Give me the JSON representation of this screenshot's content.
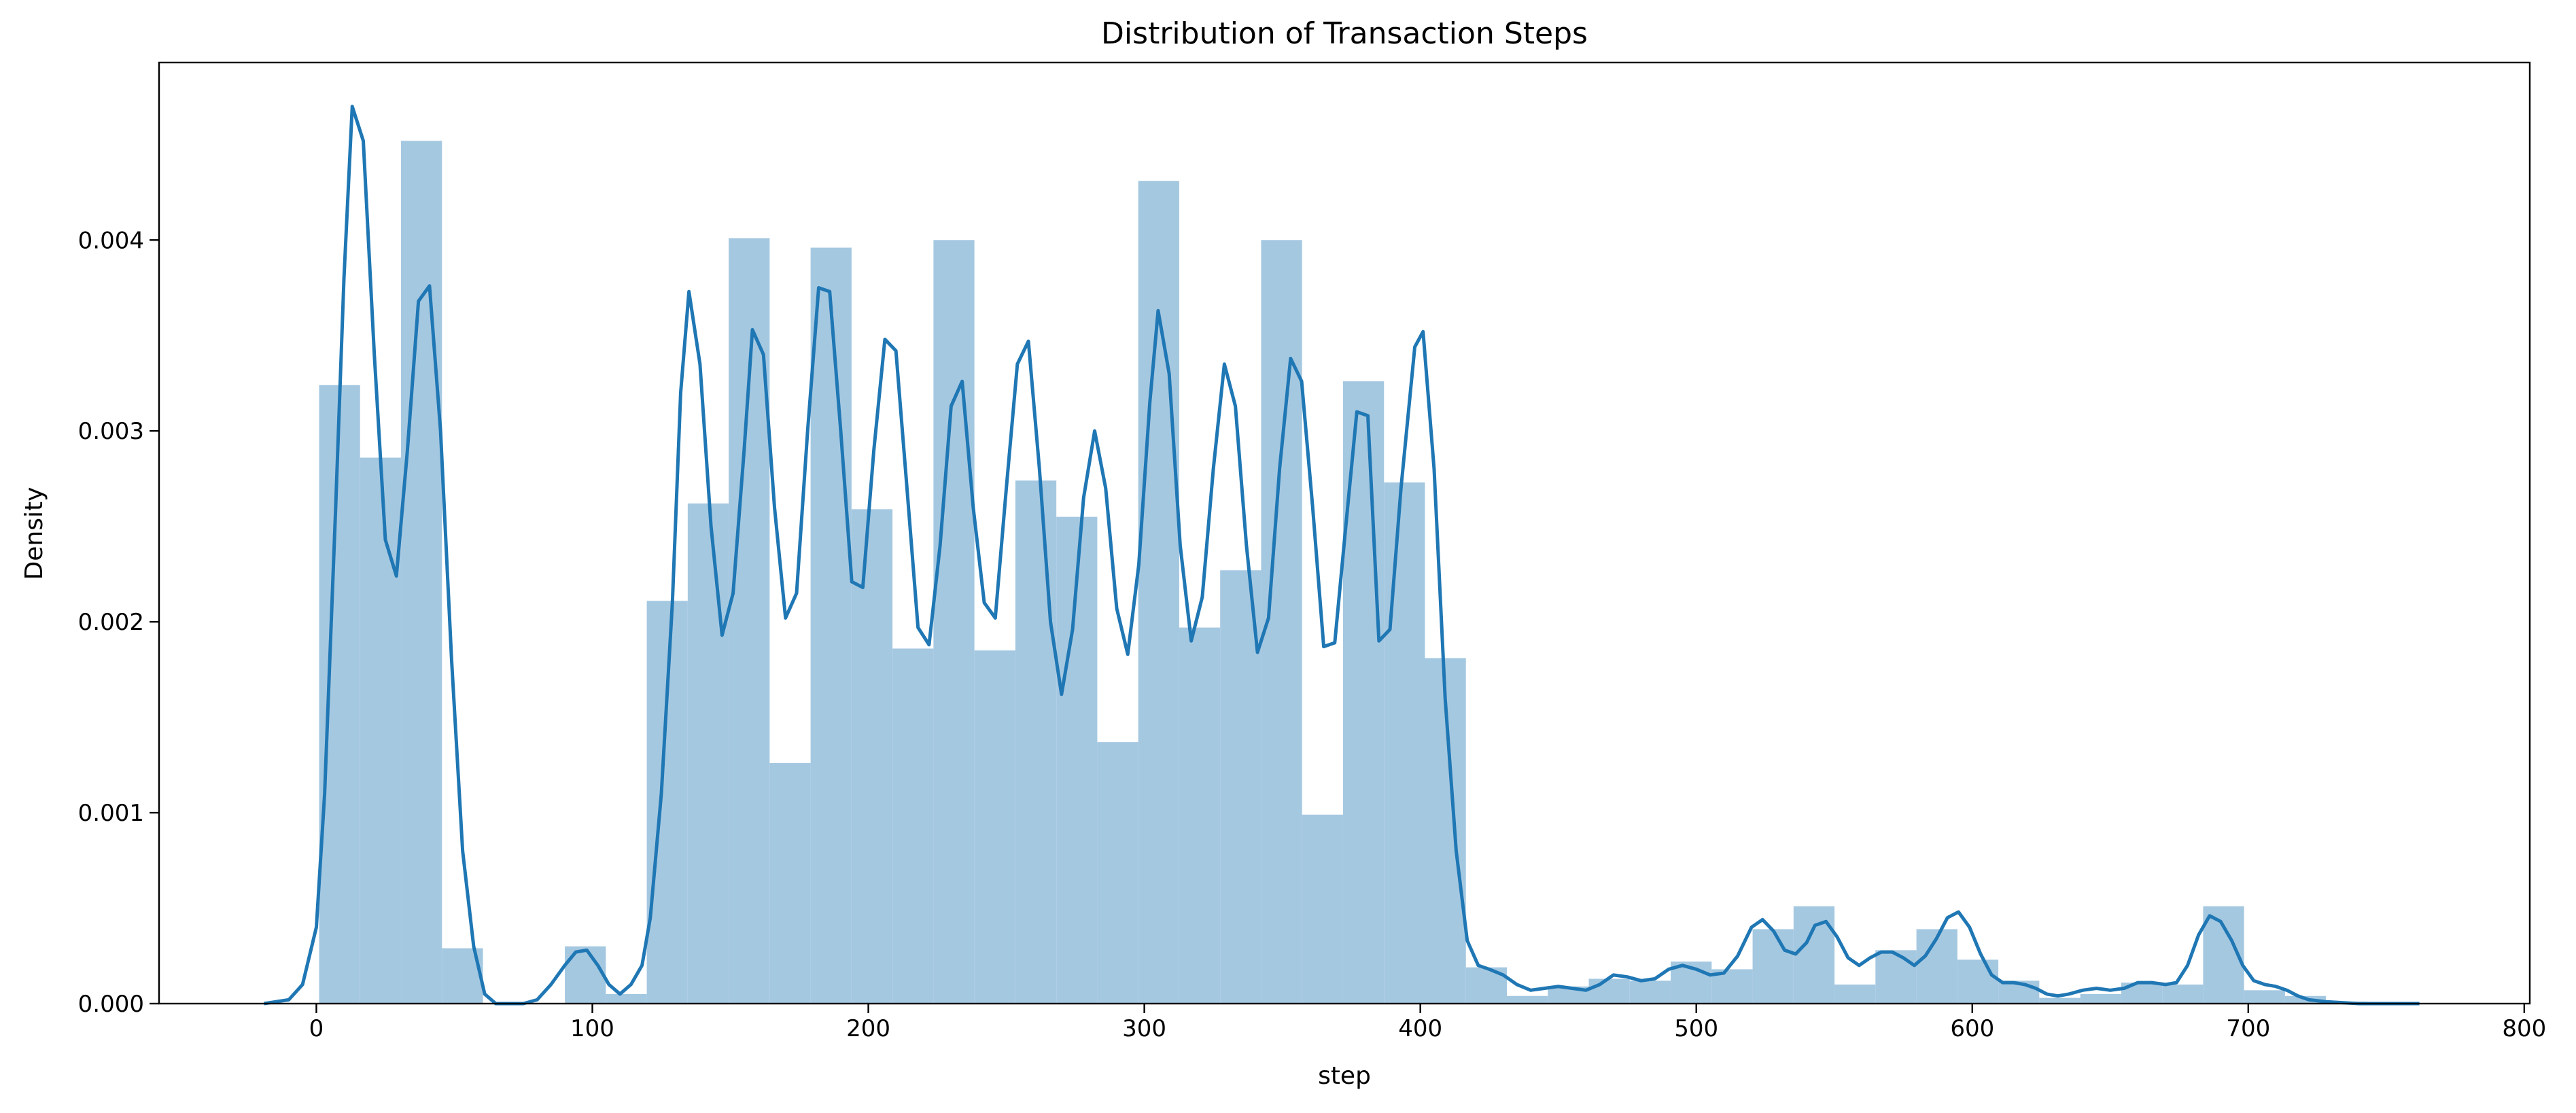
{
  "chart_data": {
    "type": "histogram",
    "title": "Distribution of Transaction Steps",
    "xlabel": "step",
    "ylabel": "Density",
    "xlim": [
      -57,
      802
    ],
    "ylim": [
      0,
      0.00493
    ],
    "xticks": [
      0,
      100,
      200,
      300,
      400,
      500,
      600,
      700,
      800
    ],
    "yticks": [
      {
        "value": 0,
        "label": "0.000"
      },
      {
        "value": 0.001,
        "label": "0.001"
      },
      {
        "value": 0.002,
        "label": "0.002"
      },
      {
        "value": 0.003,
        "label": "0.003"
      },
      {
        "value": 0.004,
        "label": "0.004"
      }
    ],
    "color": "#a5c8e1",
    "bins": [
      1,
      15.84,
      30.68,
      45.52,
      60.36,
      75.2,
      90.04,
      104.88,
      119.72,
      134.56,
      149.4,
      164.24,
      179.08,
      193.92,
      208.76,
      223.6,
      238.44,
      253.28,
      268.12,
      282.96,
      297.8,
      312.64,
      327.48,
      342.32,
      357.16,
      372,
      386.84,
      401.68,
      416.52,
      431.36,
      446.2,
      461.04,
      475.88,
      490.72,
      505.56,
      520.4,
      535.24,
      550.08,
      564.92,
      579.76,
      594.6,
      609.44,
      624.28,
      639.12,
      653.96,
      668.8,
      683.64,
      698.48,
      713.32,
      728.16,
      743
    ],
    "values": [
      0.00324,
      0.00286,
      0.00452,
      0.00029,
      0,
      0,
      0.0003,
      5e-05,
      0.00211,
      0.00262,
      0.00401,
      0.00126,
      0.00396,
      0.00259,
      0.00186,
      0.004,
      0.00185,
      0.00274,
      0.00255,
      0.00137,
      0.00431,
      0.00197,
      0.00227,
      0.004,
      0.00099,
      0.00326,
      0.00273,
      0.00181,
      0.00019,
      4e-05,
      9e-05,
      0.00013,
      0.00012,
      0.00022,
      0.00018,
      0.00039,
      0.00051,
      0.0001,
      0.00028,
      0.00039,
      0.00023,
      0.00012,
      3e-05,
      5e-05,
      0.00011,
      0.0001,
      0.00051,
      7e-05,
      4e-05,
      1e-05
    ],
    "kde": {
      "type": "line",
      "color": "#1f77b4",
      "x": [
        -19,
        -10,
        -5,
        0,
        3,
        7,
        10,
        13,
        17,
        21,
        25,
        29,
        33,
        37,
        41,
        45,
        49,
        53,
        57,
        61,
        65,
        75,
        80,
        85,
        90,
        94,
        98,
        102,
        106,
        110,
        114,
        118,
        121,
        125,
        129,
        132,
        135,
        139,
        143,
        147,
        151,
        155,
        158,
        162,
        166,
        170,
        174,
        178,
        182,
        186,
        190,
        194,
        198,
        202,
        206,
        210,
        214,
        218,
        222,
        226,
        230,
        234,
        238,
        242,
        246,
        250,
        254,
        258,
        262,
        266,
        270,
        274,
        278,
        282,
        286,
        290,
        294,
        298,
        302,
        305,
        309,
        313,
        317,
        321,
        325,
        329,
        333,
        337,
        341,
        345,
        349,
        353,
        357,
        361,
        365,
        369,
        373,
        377,
        381,
        385,
        389,
        393,
        398,
        401,
        405,
        409,
        413,
        417,
        421,
        425,
        430,
        435,
        440,
        445,
        450,
        455,
        460,
        465,
        470,
        475,
        480,
        485,
        490,
        495,
        500,
        505,
        510,
        515,
        520,
        524,
        528,
        532,
        536,
        540,
        543,
        547,
        551,
        555,
        559,
        563,
        567,
        571,
        575,
        579,
        583,
        587,
        591,
        595,
        599,
        603,
        607,
        611,
        615,
        619,
        623,
        627,
        631,
        635,
        640,
        645,
        650,
        655,
        660,
        665,
        670,
        674,
        678,
        682,
        686,
        690,
        694,
        698,
        702,
        706,
        710,
        714,
        718,
        722,
        728,
        740,
        762
      ],
      "values": [
        0,
        2e-05,
        0.0001,
        0.0004,
        0.0011,
        0.0026,
        0.0038,
        0.0047,
        0.00452,
        0.0034,
        0.00243,
        0.00224,
        0.0029,
        0.00368,
        0.00376,
        0.003,
        0.0018,
        0.0008,
        0.0003,
        5e-05,
        0,
        0,
        2e-05,
        0.0001,
        0.0002,
        0.00027,
        0.00028,
        0.0002,
        0.0001,
        5e-05,
        0.0001,
        0.0002,
        0.00045,
        0.0011,
        0.0021,
        0.0032,
        0.00373,
        0.00335,
        0.0025,
        0.00193,
        0.00215,
        0.0029,
        0.00353,
        0.0034,
        0.0026,
        0.00202,
        0.00215,
        0.003,
        0.00375,
        0.00373,
        0.003,
        0.00221,
        0.00218,
        0.0029,
        0.00348,
        0.00342,
        0.0027,
        0.00197,
        0.00188,
        0.0024,
        0.00313,
        0.00326,
        0.0026,
        0.0021,
        0.00202,
        0.0027,
        0.00335,
        0.00347,
        0.0028,
        0.002,
        0.00162,
        0.00196,
        0.00265,
        0.003,
        0.0027,
        0.00207,
        0.00183,
        0.0023,
        0.00315,
        0.00363,
        0.0033,
        0.0024,
        0.0019,
        0.00213,
        0.0028,
        0.00335,
        0.00313,
        0.0024,
        0.00184,
        0.00202,
        0.0028,
        0.00338,
        0.00326,
        0.0026,
        0.00187,
        0.00189,
        0.0025,
        0.0031,
        0.00308,
        0.0019,
        0.00196,
        0.0027,
        0.00344,
        0.00352,
        0.0028,
        0.0016,
        0.0008,
        0.00033,
        0.0002,
        0.00018,
        0.00015,
        0.0001,
        7e-05,
        8e-05,
        9e-05,
        8e-05,
        7e-05,
        0.0001,
        0.00015,
        0.00014,
        0.00012,
        0.00013,
        0.00018,
        0.0002,
        0.00018,
        0.00015,
        0.00016,
        0.00025,
        0.0004,
        0.00044,
        0.00038,
        0.00028,
        0.00026,
        0.00032,
        0.00041,
        0.00043,
        0.00035,
        0.00024,
        0.0002,
        0.00024,
        0.00027,
        0.00027,
        0.00024,
        0.0002,
        0.00025,
        0.00034,
        0.00045,
        0.00048,
        0.0004,
        0.00026,
        0.00015,
        0.00011,
        0.00011,
        0.0001,
        8e-05,
        5e-05,
        4e-05,
        5e-05,
        7e-05,
        8e-05,
        7e-05,
        8e-05,
        0.00011,
        0.00011,
        0.0001,
        0.00011,
        0.0002,
        0.00036,
        0.00046,
        0.00043,
        0.00033,
        0.0002,
        0.00012,
        0.0001,
        9e-05,
        7e-05,
        4e-05,
        2e-05,
        1e-05,
        0,
        0
      ]
    }
  }
}
